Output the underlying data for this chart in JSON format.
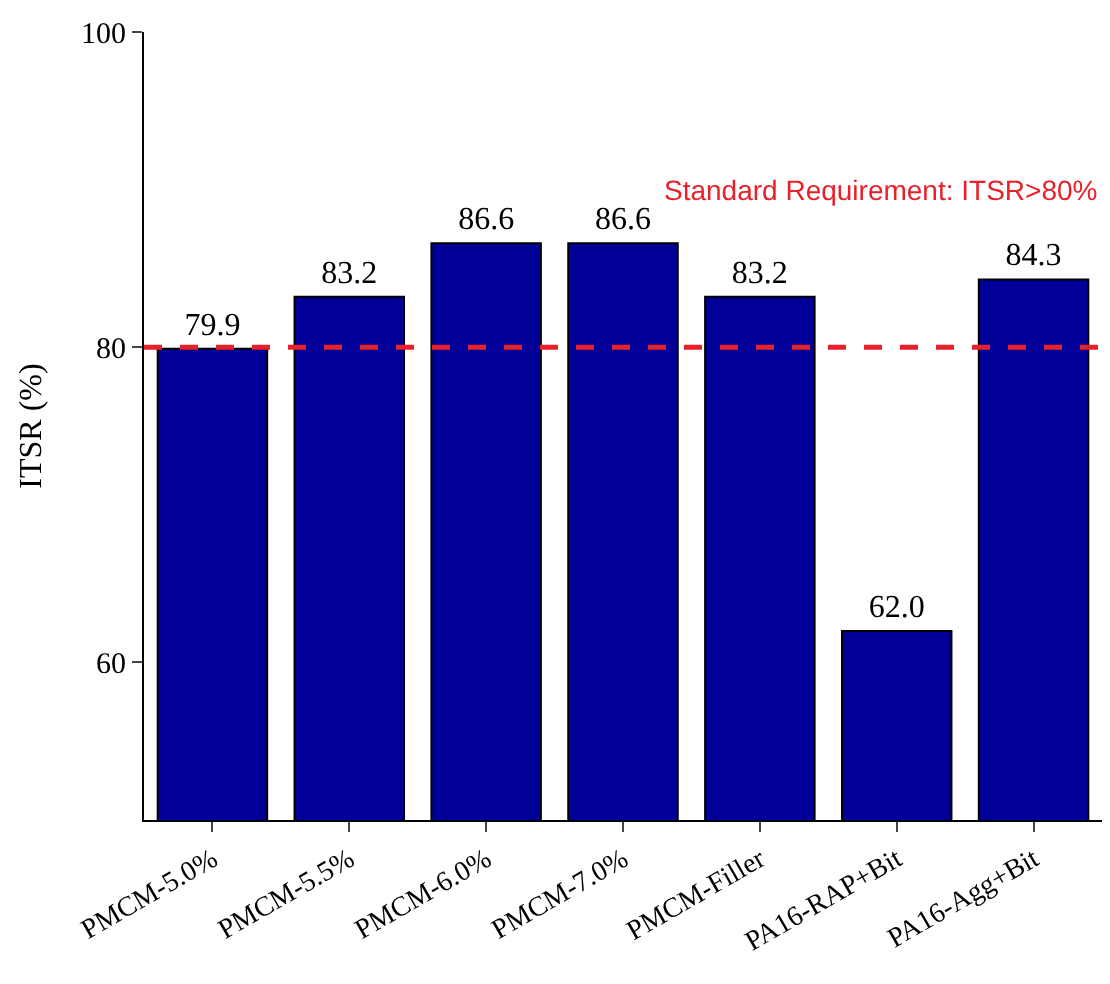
{
  "chart_data": {
    "type": "bar",
    "ylabel": "ITSR (%)",
    "categories": [
      "PMCM-5.0%",
      "PMCM-5.5%",
      "PMCM-6.0%",
      "PMCM-7.0%",
      "PMCM-Filler",
      "PA16-RAP+Bit",
      "PA16-Agg+Bit"
    ],
    "values": [
      79.9,
      83.2,
      86.6,
      86.6,
      83.2,
      62.0,
      84.3
    ],
    "value_labels": [
      "79.9",
      "83.2",
      "86.6",
      "86.6",
      "83.2",
      "62.0",
      "84.3"
    ],
    "color": "#000099",
    "ylim": [
      50,
      100
    ],
    "yticks": [
      60,
      80,
      100
    ],
    "legend": false,
    "ref_lines": [
      {
        "axis": "y",
        "value": 80,
        "label": "Standard Requirement: ITSR>80%",
        "color": "#e8202a",
        "line_style": "dashed"
      }
    ]
  }
}
